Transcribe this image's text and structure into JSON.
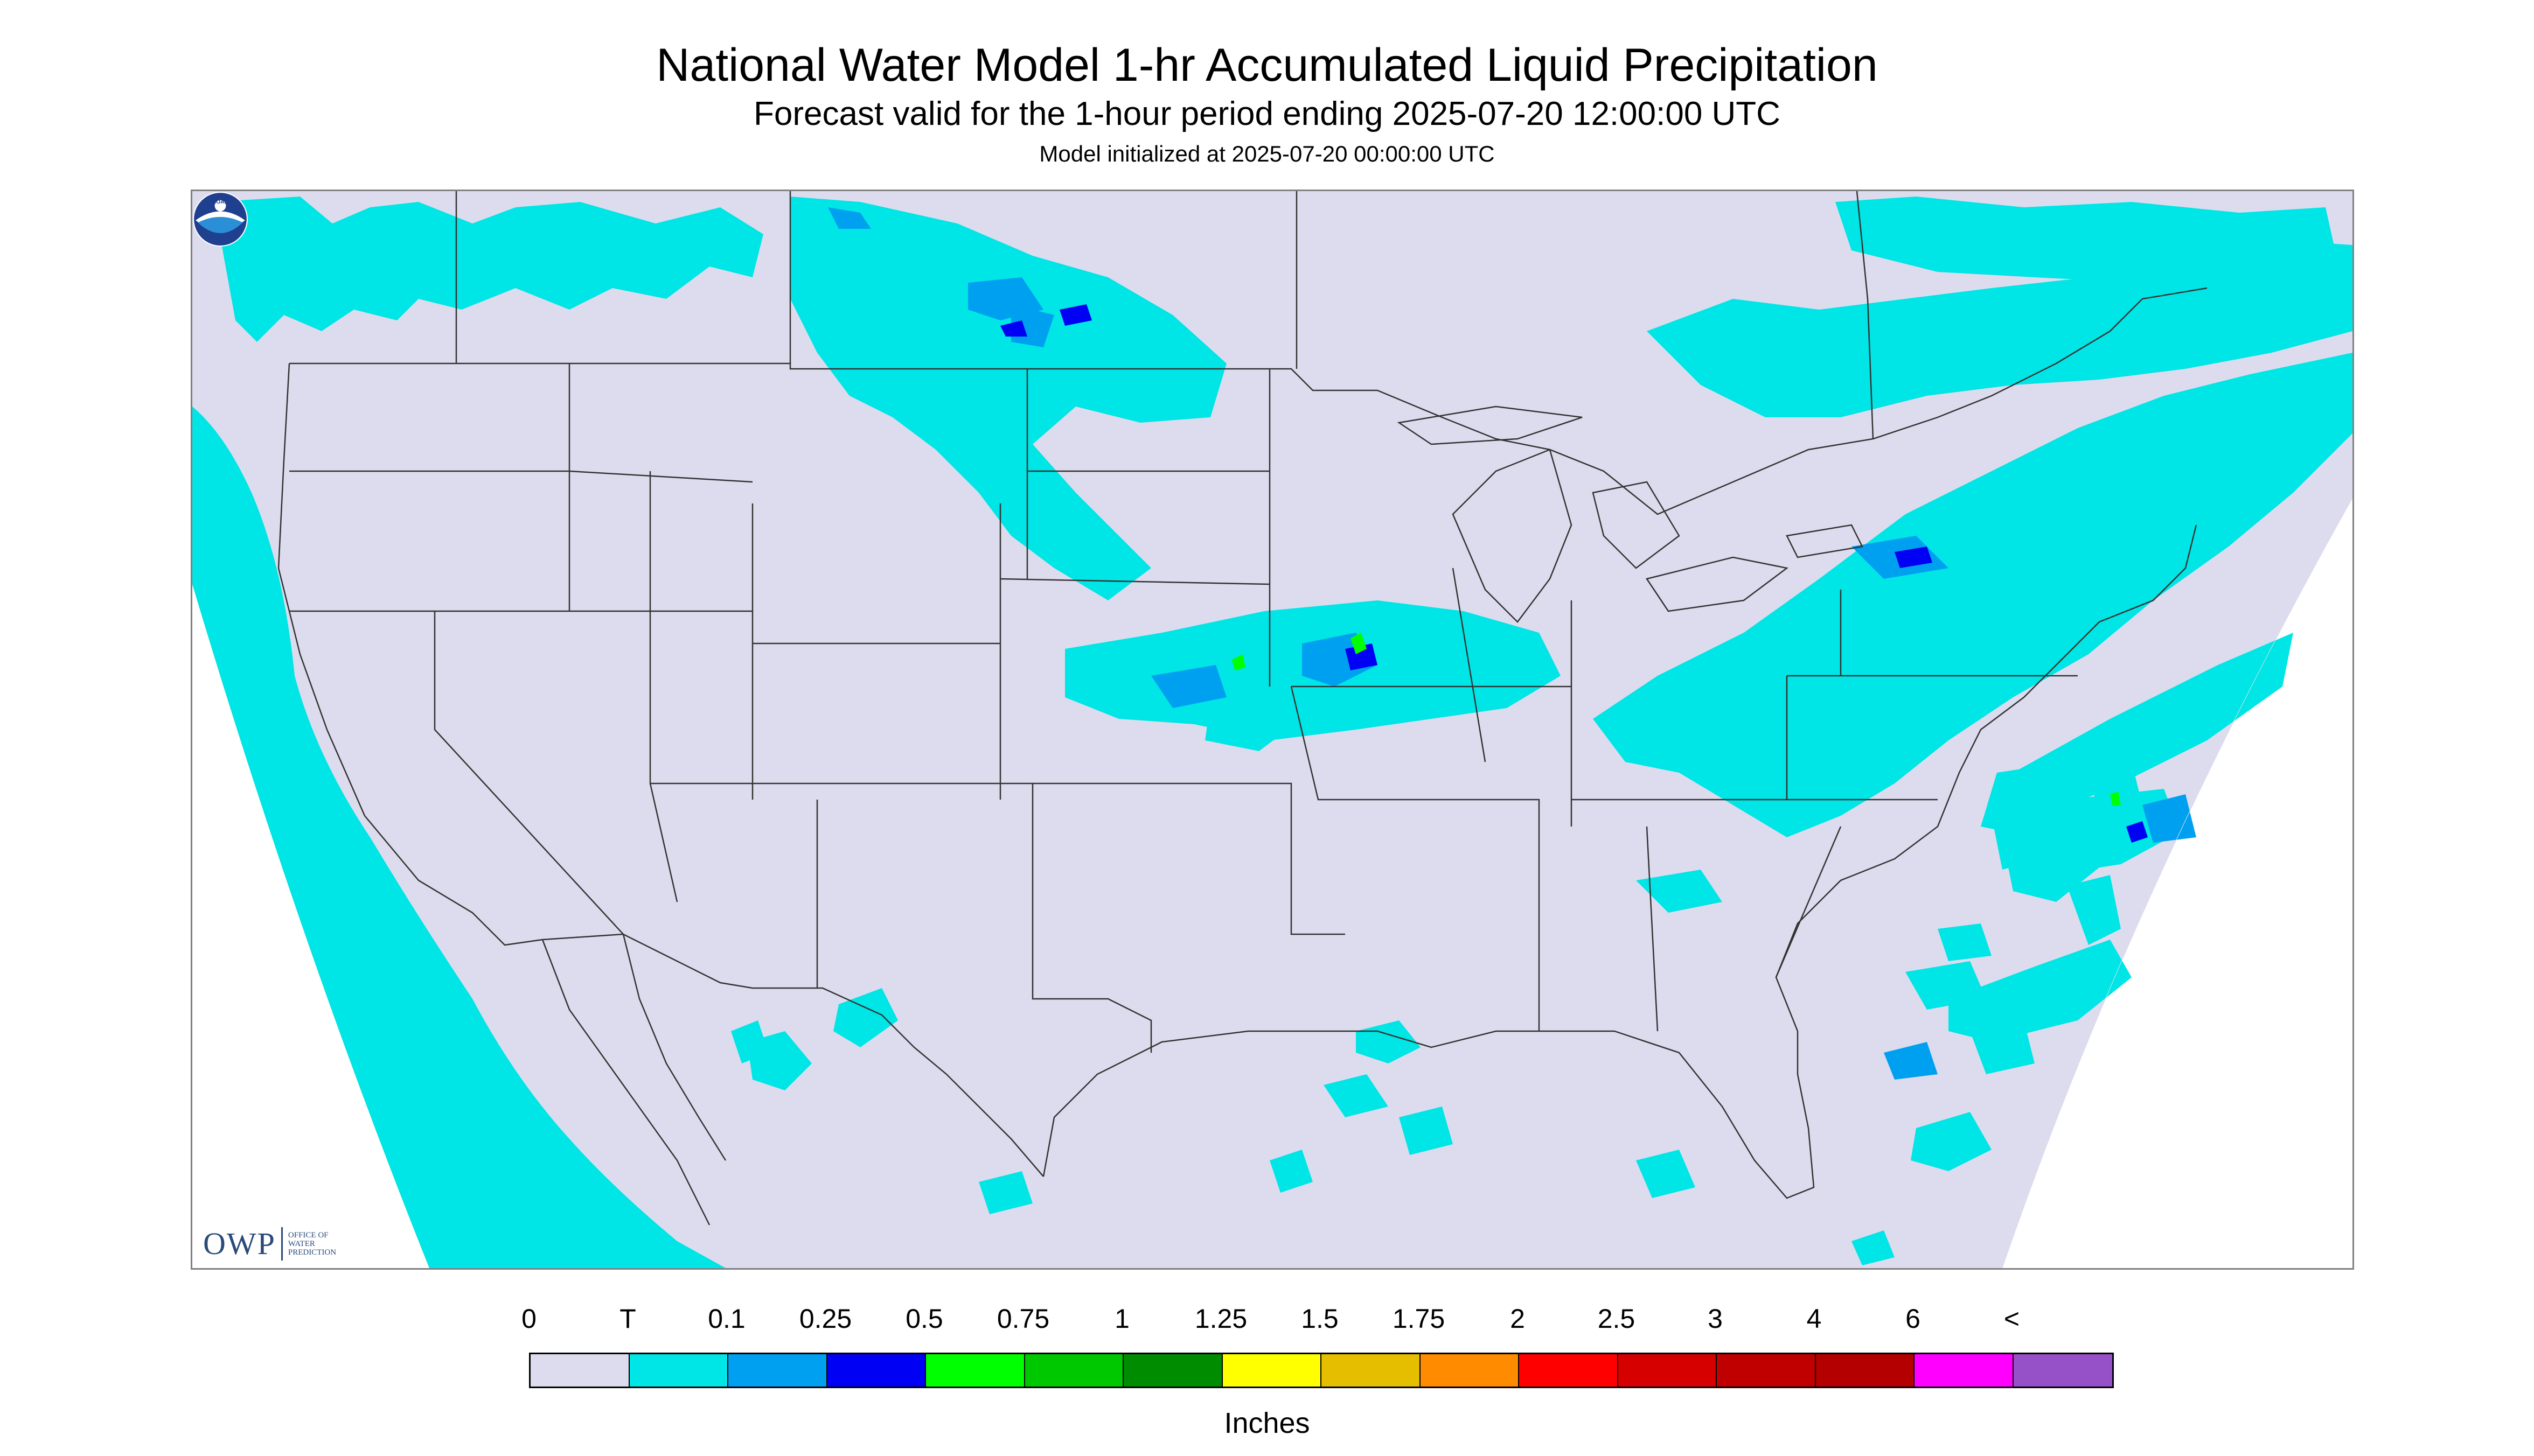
{
  "header": {
    "title": "National Water Model 1-hr Accumulated Liquid Precipitation",
    "subtitle": "Forecast valid for the 1-hour period ending 2025-07-20 12:00:00 UTC",
    "init": "Model initialized at 2025-07-20 00:00:00 UTC"
  },
  "legend": {
    "labels": [
      "0",
      "T",
      "0.1",
      "0.25",
      "0.5",
      "0.75",
      "1",
      "1.25",
      "1.5",
      "1.75",
      "2",
      "2.5",
      "3",
      "4",
      "6",
      "<"
    ],
    "colors": [
      "#dcdcee",
      "#00e5e5",
      "#00a0f0",
      "#0000f5",
      "#00ff00",
      "#00c800",
      "#008c00",
      "#ffff00",
      "#e6be00",
      "#ff8c00",
      "#ff0000",
      "#d70000",
      "#c00000",
      "#b40000",
      "#ff00ff",
      "#9650c8"
    ],
    "units": "Inches"
  },
  "logos": {
    "owp_text": "OWP",
    "owp_sub": [
      "OFFICE OF",
      "WATER",
      "PREDICTION"
    ],
    "noaa_text": "NOAA"
  },
  "colors": {
    "no_data": "#dcdcee",
    "trace": "#00e5e5",
    "light": "#00a0f0",
    "moderate": "#0000f5",
    "heavy": "#00ff00",
    "heavier": "#00c800"
  }
}
